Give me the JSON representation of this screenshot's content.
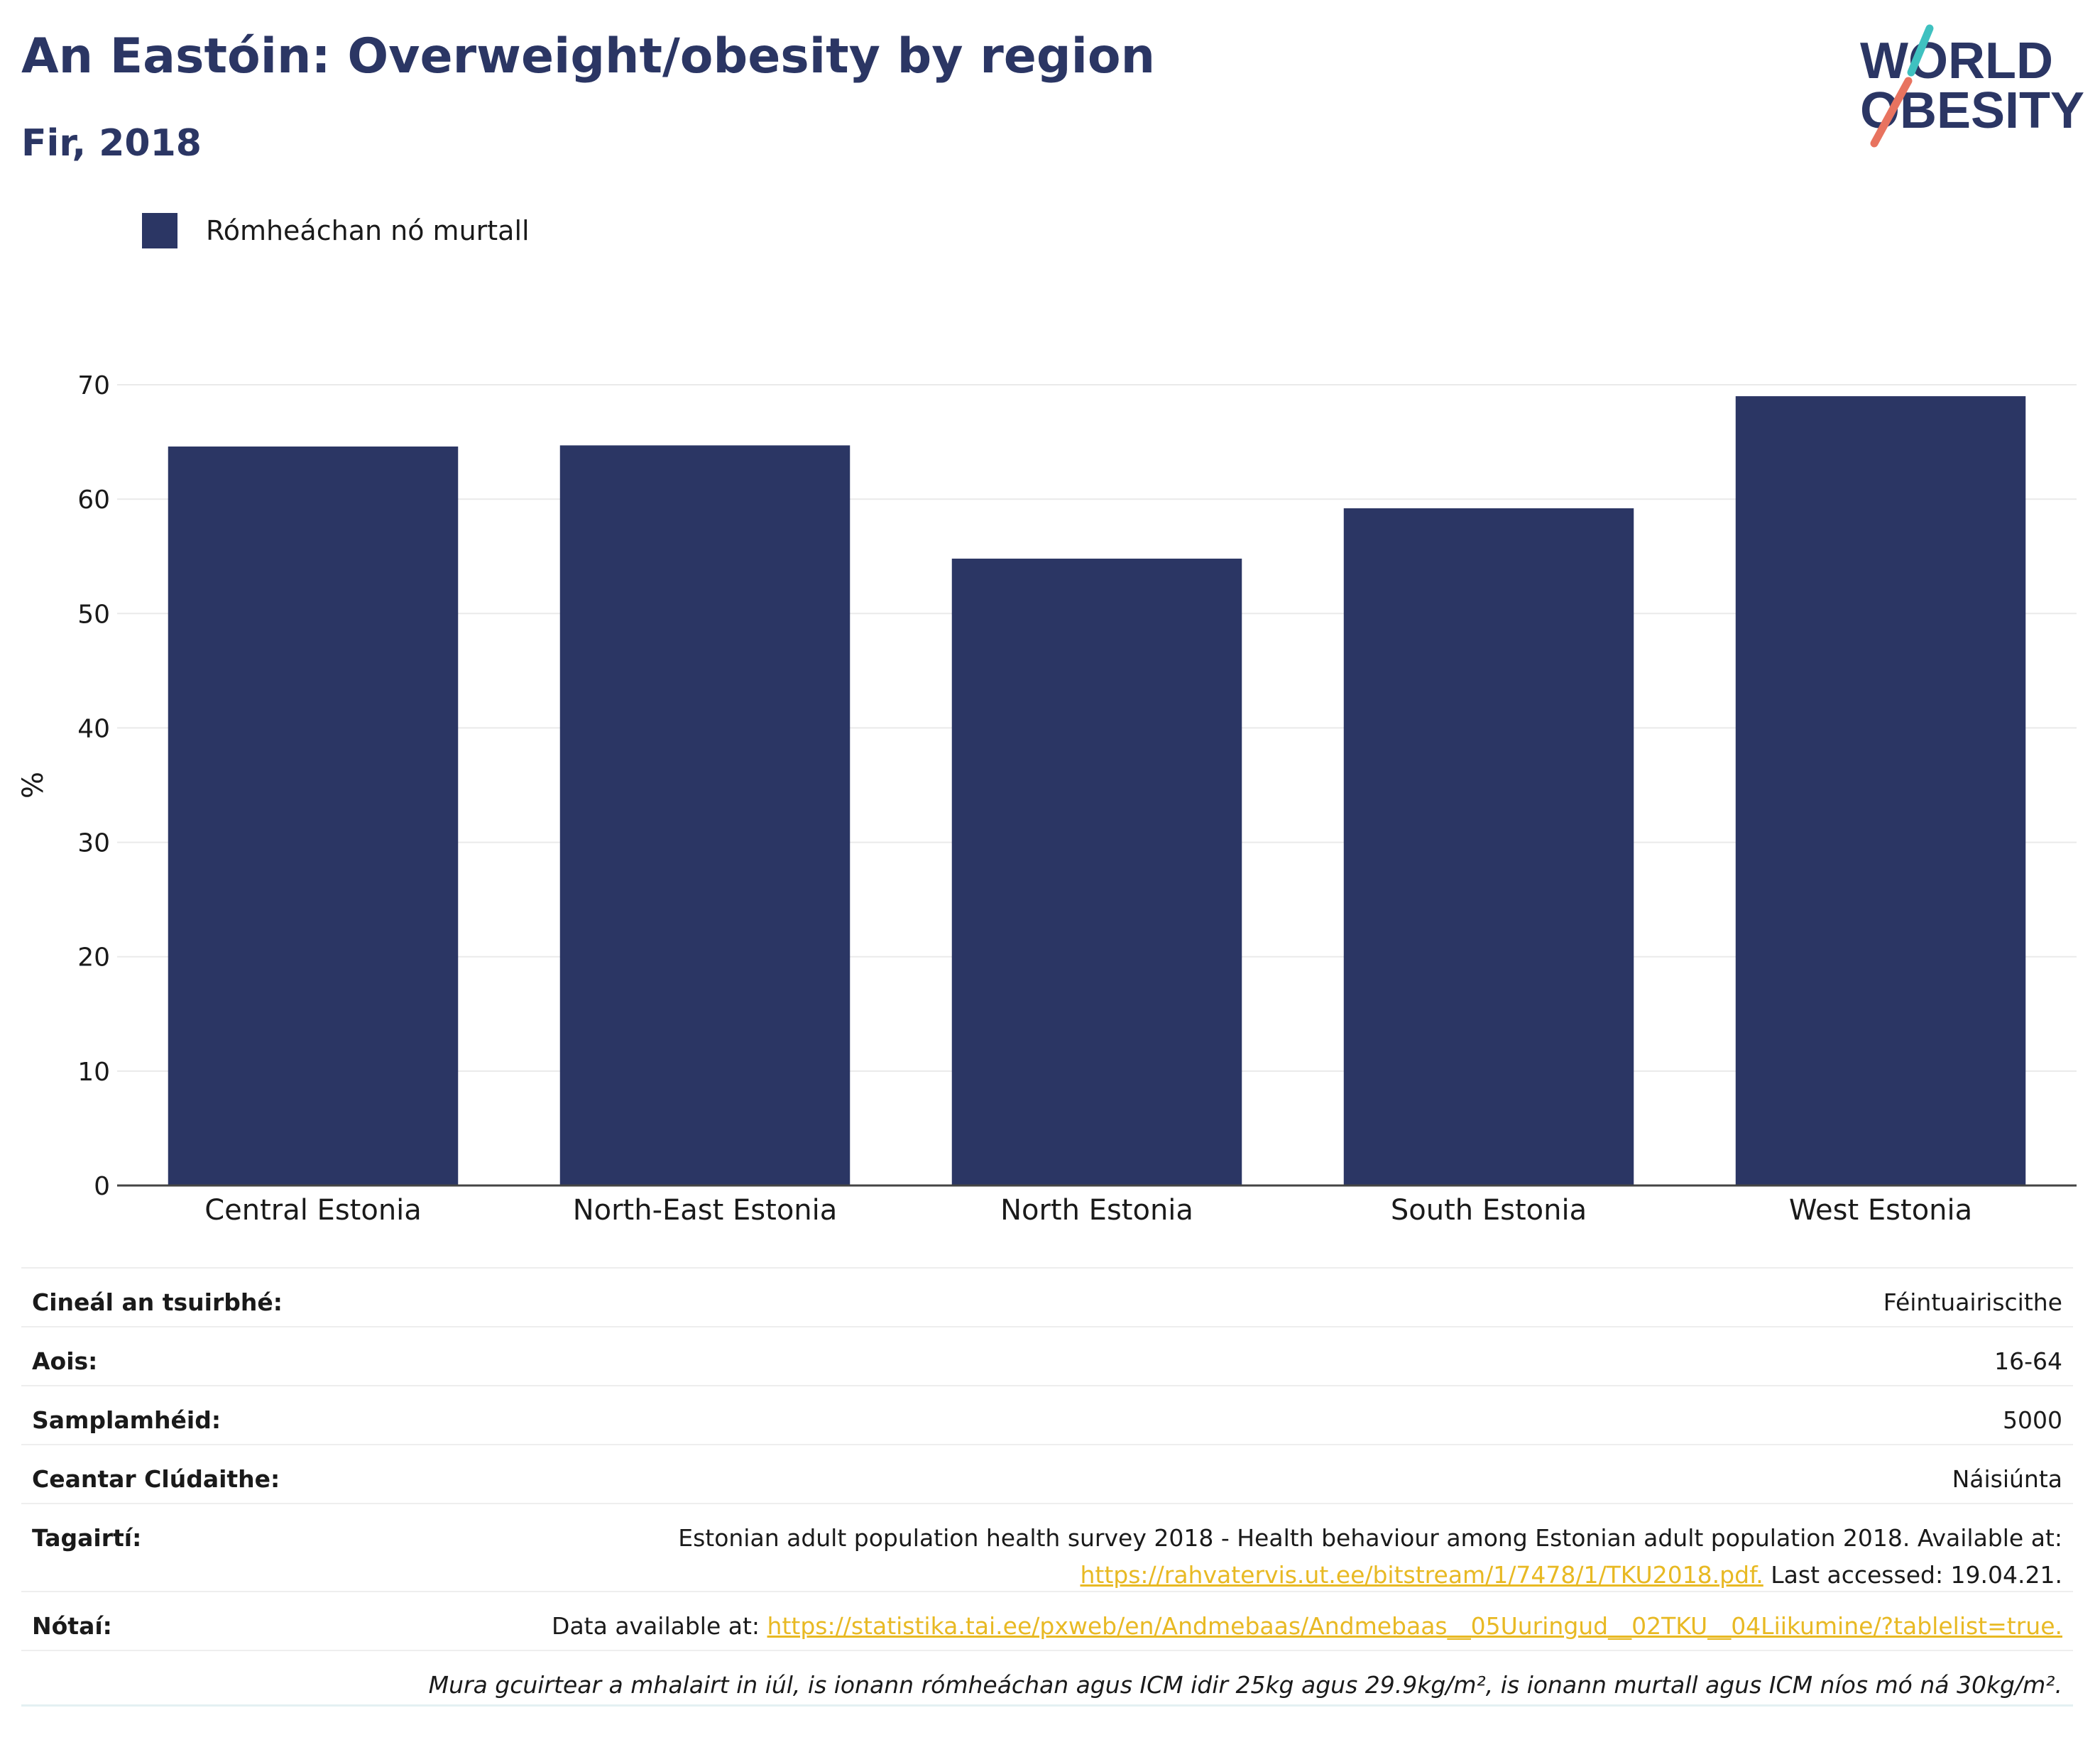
{
  "header": {
    "title": "An Eastóin: Overweight/obesity by region",
    "subtitle": "Fir, 2018"
  },
  "logo": {
    "line1": "WORLD",
    "line2": "OBESITY"
  },
  "legend": {
    "label": "Rómheáchan nó murtall"
  },
  "colors": {
    "bar": "#2b3664",
    "title": "#2b3664",
    "link": "#e8b923",
    "logo_teal": "#3fc1c0",
    "logo_coral": "#e8735f"
  },
  "chart_data": {
    "type": "bar",
    "categories": [
      "Central Estonia",
      "North-East Estonia",
      "North Estonia",
      "South Estonia",
      "West Estonia"
    ],
    "series": [
      {
        "name": "Rómheáchan nó murtall",
        "values": [
          64.6,
          64.7,
          54.8,
          59.2,
          69.0
        ]
      }
    ],
    "ylabel": "%",
    "yticks": [
      0,
      10,
      20,
      30,
      40,
      50,
      60,
      70
    ],
    "ylim": [
      0,
      70
    ],
    "grid": true,
    "legend": "top-left"
  },
  "meta": {
    "survey_type": {
      "label": "Cineál an tsuirbhé:",
      "value": "Féintuairiscithe"
    },
    "age": {
      "label": "Aois:",
      "value": "16-64"
    },
    "sample": {
      "label": "Samplamhéid:",
      "value": "5000"
    },
    "coverage": {
      "label": "Ceantar Clúdaithe:",
      "value": "Náisiúnta"
    },
    "references": {
      "label": "Tagairtí:",
      "text": "Estonian adult population health survey 2018 - Health behaviour among Estonian adult population 2018. Available at:",
      "link": "https://rahvatervis.ut.ee/bitstream/1/7478/1/TKU2018.pdf.",
      "suffix": " Last accessed: 19.04.21."
    },
    "notes": {
      "label": "Nótaí:",
      "prefix": "Data available at: ",
      "link": "https://statistika.tai.ee/pxweb/en/Andmebaas/Andmebaas__05Uuringud__02TKU__04Liikumine/?tablelist=true."
    },
    "footnote": "Mura gcuirtear a mhalairt in iúl, is ionann rómheáchan agus ICM idir 25kg agus 29.9kg/m², is ionann murtall agus ICM níos mó ná 30kg/m²."
  }
}
